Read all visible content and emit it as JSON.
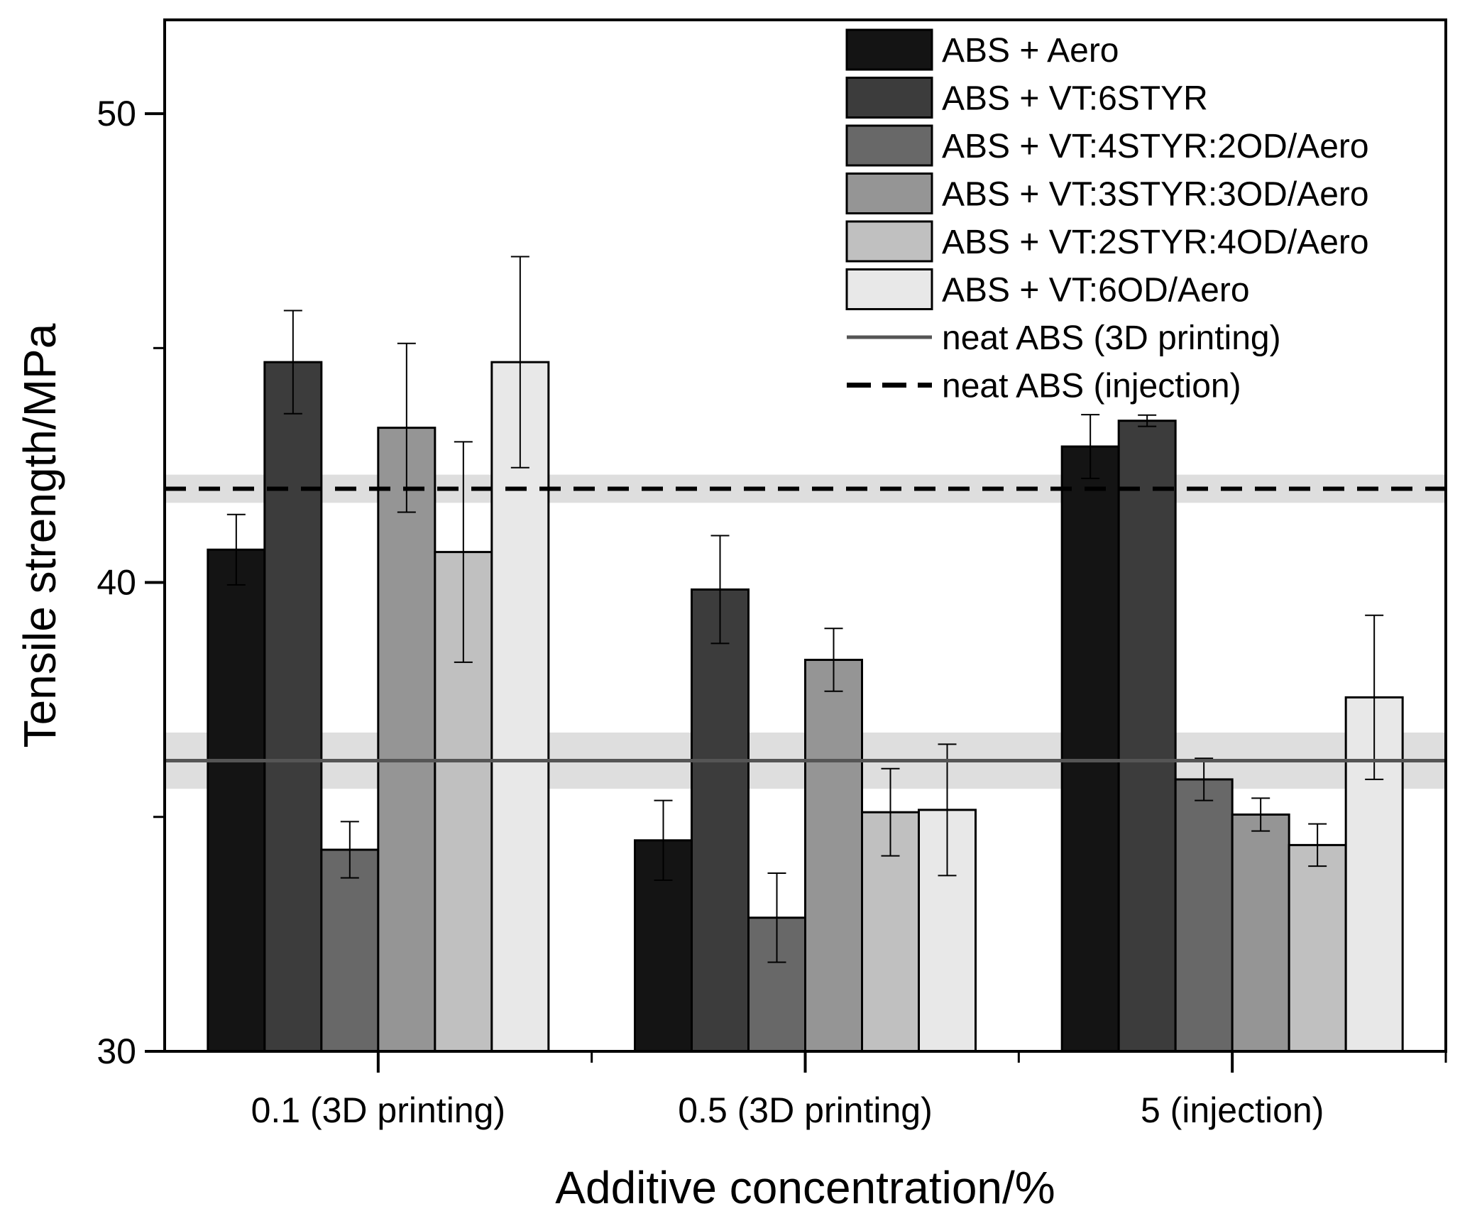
{
  "chart_data": {
    "type": "bar",
    "xlabel": "Additive concentration/%",
    "ylabel": "Tensile strength/MPa",
    "ylim": [
      30,
      52
    ],
    "yticks": [
      30,
      40,
      50
    ],
    "grid": false,
    "legend_position": "top-right",
    "categories": [
      "0.1 (3D printing)",
      "0.5 (3D printing)",
      "5 (injection)"
    ],
    "series": [
      {
        "name": "ABS + Aero",
        "color": "#141414",
        "values": [
          40.7,
          34.5,
          42.9
        ],
        "errors": [
          0.75,
          0.85,
          0.68
        ]
      },
      {
        "name": "ABS + VT:6STYR",
        "color": "#3c3c3c",
        "values": [
          44.7,
          39.85,
          43.45
        ],
        "errors": [
          1.1,
          1.15,
          0.12
        ]
      },
      {
        "name": "ABS + VT:4STYR:2OD/Aero",
        "color": "#686868",
        "values": [
          34.3,
          32.85,
          35.8
        ],
        "errors": [
          0.6,
          0.95,
          0.45
        ]
      },
      {
        "name": "ABS + VT:3STYR:3OD/Aero",
        "color": "#959595",
        "values": [
          43.3,
          38.35,
          35.05
        ],
        "errors": [
          1.8,
          0.67,
          0.35
        ]
      },
      {
        "name": "ABS + VT:2STYR:4OD/Aero",
        "color": "#c0c0c0",
        "values": [
          40.65,
          35.1,
          34.4
        ],
        "errors": [
          2.35,
          0.93,
          0.45
        ]
      },
      {
        "name": "ABS + VT:6OD/Aero",
        "color": "#e8e8e8",
        "values": [
          44.7,
          35.15,
          37.55
        ],
        "errors": [
          2.25,
          1.4,
          1.75
        ]
      }
    ],
    "reference_lines": [
      {
        "name": "neat ABS (3D printing)",
        "value": 36.2,
        "band": [
          35.6,
          36.8
        ],
        "style": "solid",
        "color": "#555555"
      },
      {
        "name": "neat ABS (injection)",
        "value": 42.0,
        "band": [
          41.7,
          42.3
        ],
        "style": "dashed",
        "color": "#000000"
      }
    ]
  }
}
